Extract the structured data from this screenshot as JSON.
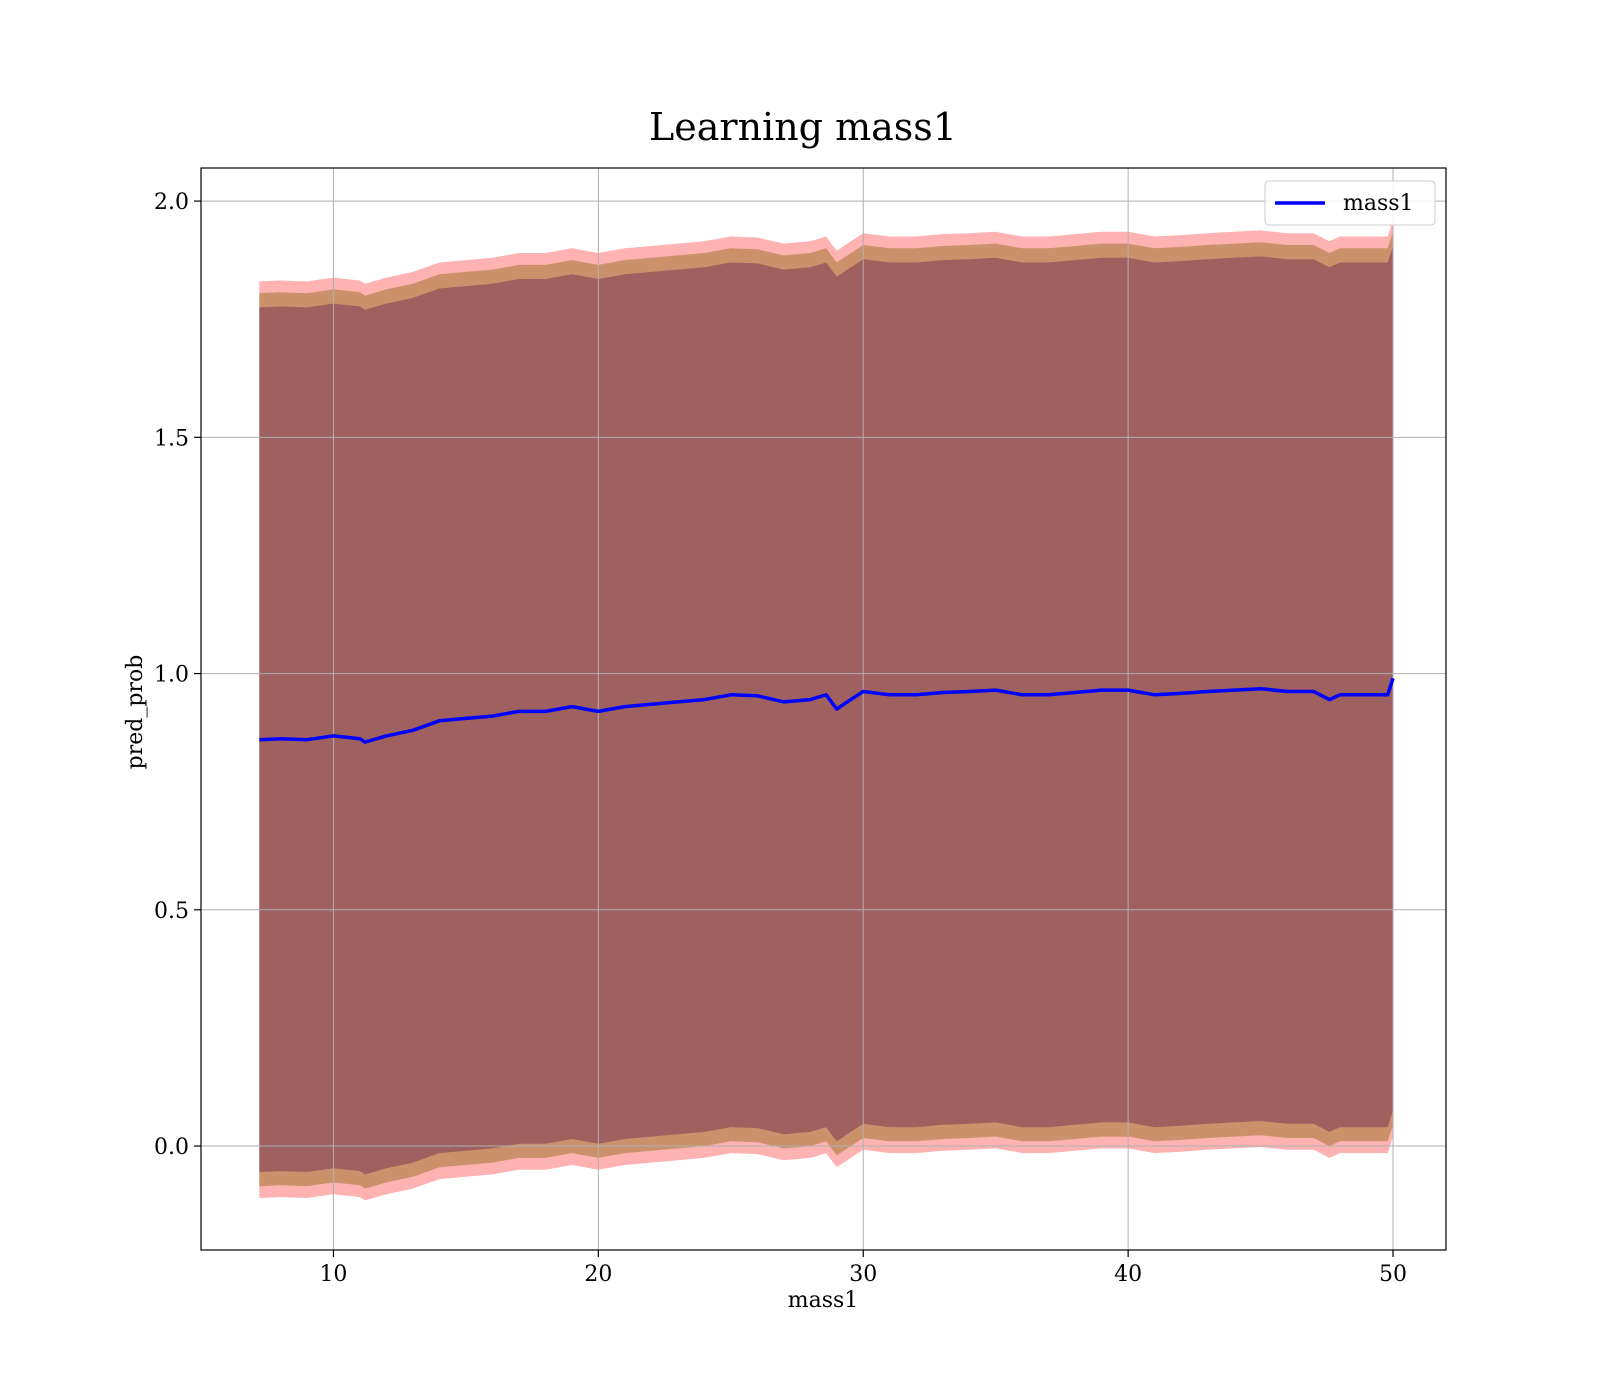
{
  "chart_data": {
    "type": "line",
    "title": "Learning mass1",
    "xlabel": "mass1",
    "ylabel": "pred_prob",
    "xlim": [
      5,
      52
    ],
    "ylim": [
      -0.22,
      2.07
    ],
    "xticks": [
      10,
      20,
      30,
      40,
      50
    ],
    "yticks": [
      0.0,
      0.5,
      1.0,
      1.5,
      2.0
    ],
    "xtick_labels": [
      "10",
      "20",
      "30",
      "40",
      "50"
    ],
    "ytick_labels": [
      "0.0",
      "0.5",
      "1.0",
      "1.5",
      "2.0"
    ],
    "grid": true,
    "legend_position": "top-right",
    "series": [
      {
        "name": "mass1",
        "color": "#0000ff",
        "x": [
          7.2,
          8,
          9,
          10,
          11,
          11.2,
          12,
          13,
          14,
          15,
          16,
          17,
          18,
          19,
          20,
          21,
          22,
          23,
          24,
          25,
          26,
          27,
          28,
          28.6,
          29,
          29.4,
          30,
          31,
          32,
          33,
          34,
          35,
          36,
          37,
          38,
          39,
          40,
          41,
          42,
          43,
          44,
          45,
          46,
          47,
          47.6,
          48,
          49,
          49.8,
          50
        ],
        "y": [
          0.86,
          0.862,
          0.86,
          0.868,
          0.862,
          0.855,
          0.868,
          0.88,
          0.9,
          0.905,
          0.91,
          0.92,
          0.92,
          0.93,
          0.92,
          0.93,
          0.935,
          0.94,
          0.945,
          0.955,
          0.953,
          0.94,
          0.945,
          0.955,
          0.925,
          0.94,
          0.962,
          0.955,
          0.955,
          0.96,
          0.962,
          0.965,
          0.955,
          0.955,
          0.96,
          0.965,
          0.965,
          0.955,
          0.958,
          0.962,
          0.965,
          0.968,
          0.962,
          0.962,
          0.945,
          0.955,
          0.955,
          0.955,
          0.99
        ]
      }
    ],
    "bands": [
      {
        "role": "outer",
        "color": "#ff0000",
        "opacity": 0.3,
        "offset": 0.97
      },
      {
        "role": "middle",
        "color": "#8b6914",
        "opacity": 0.45,
        "offset": 0.945
      },
      {
        "role": "inner",
        "color": "#7a3a55",
        "opacity": 0.55,
        "offset": 0.915
      }
    ]
  }
}
